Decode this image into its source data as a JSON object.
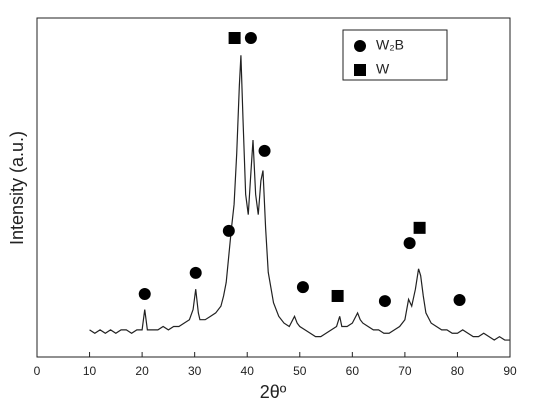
{
  "chart_data": {
    "type": "line",
    "xlabel": "2θº",
    "ylabel": "Intensity (a.u.)",
    "color": "#222222",
    "x": [
      10,
      11,
      12,
      13,
      14,
      15,
      16,
      17,
      18,
      19,
      20,
      20.5,
      21,
      22,
      23,
      24,
      25,
      26,
      27,
      28,
      29,
      29.7,
      30.2,
      30.7,
      31,
      32,
      33,
      34,
      35,
      35.5,
      36,
      36.5,
      37,
      37.5,
      38,
      38.5,
      38.8,
      39.2,
      39.7,
      40.2,
      40.6,
      41.1,
      41.6,
      42.1,
      42.6,
      43,
      43.5,
      44,
      45,
      46,
      47,
      48,
      49,
      49.5,
      50,
      51,
      52,
      53,
      54,
      55,
      56,
      57,
      57.6,
      58,
      59,
      60,
      61,
      61.5,
      62,
      63,
      64,
      65,
      66,
      67,
      68,
      69,
      70,
      70.7,
      71.3,
      72,
      72.6,
      73,
      73.5,
      74,
      75,
      76,
      77,
      78,
      79,
      80,
      81,
      82,
      83,
      84,
      85,
      86,
      87,
      88,
      89,
      90
    ],
    "values": [
      8,
      7,
      8,
      7,
      8,
      7,
      8,
      8,
      7,
      8,
      8,
      14,
      8,
      8,
      8,
      9,
      8,
      9,
      9,
      10,
      11,
      14,
      20,
      13,
      11,
      11,
      12,
      13,
      15,
      18,
      22,
      30,
      38,
      45,
      60,
      80,
      89,
      70,
      48,
      42,
      52,
      64,
      48,
      42,
      52,
      55,
      38,
      25,
      16,
      12,
      10,
      9,
      12,
      10,
      9,
      8,
      7,
      6,
      6,
      7,
      8,
      9,
      12,
      9,
      9,
      10,
      13,
      11,
      10,
      9,
      8,
      8,
      7,
      7,
      8,
      9,
      11,
      17,
      15,
      20,
      26,
      24,
      18,
      13,
      10,
      9,
      8,
      8,
      7,
      7,
      8,
      7,
      6,
      6,
      7,
      6,
      5,
      6,
      5,
      5
    ],
    "xlim": [
      0,
      90
    ],
    "xticks": [
      0,
      10,
      20,
      30,
      40,
      50,
      60,
      70,
      80,
      90
    ],
    "ylim": [
      0,
      100
    ],
    "legend": "upper right",
    "series": [
      {
        "name": "W₂B",
        "marker": "circle",
        "color": "#000000",
        "x": [
          20.5,
          30.2,
          36.5,
          40.7,
          43.3,
          50.6,
          66.2,
          70.9,
          80.4
        ],
        "values": [
          18.6,
          24.8,
          37.2,
          94.1,
          60.8,
          20.6,
          16.5,
          33.6,
          16.8
        ]
      },
      {
        "name": "W",
        "marker": "square",
        "color": "#000000",
        "x": [
          37.6,
          57.2,
          72.8
        ],
        "values": [
          94.1,
          18.0,
          38.1
        ]
      }
    ]
  }
}
